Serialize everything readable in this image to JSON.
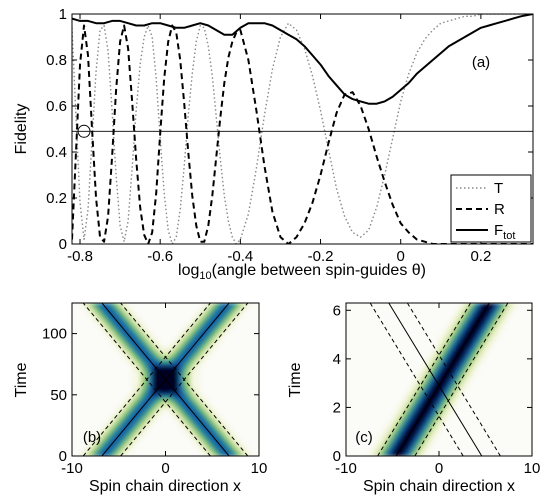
{
  "chart_data": [
    {
      "panel": "(a)",
      "type": "line",
      "xlabel_prefix": "log",
      "xlabel_sub": "10",
      "xlabel_rest": "(angle between spin-guides θ)",
      "ylabel": "Fidelity",
      "xlim": [
        -0.82,
        0.33
      ],
      "ylim": [
        0,
        1
      ],
      "xticks": [
        "-0.8",
        "-0.6",
        "-0.4",
        "-0.2",
        "0",
        "0.2"
      ],
      "xtick_values": [
        -0.8,
        -0.6,
        -0.4,
        -0.2,
        0,
        0.2
      ],
      "yticks": [
        "0",
        "0.2",
        "0.4",
        "0.6",
        "0.8",
        "1"
      ],
      "ytick_values": [
        0,
        0.2,
        0.4,
        0.6,
        0.8,
        1
      ],
      "hline_y": 0.49,
      "marker": {
        "x": -0.79,
        "y": 0.49,
        "shape": "open-circle"
      },
      "legend": {
        "placement": "bottom-right",
        "entries": [
          {
            "label": "T",
            "style": "dotted"
          },
          {
            "label": "R",
            "style": "dashed"
          },
          {
            "label": "F",
            "sub": "tot",
            "style": "solid"
          }
        ]
      },
      "series": [
        {
          "key": "T",
          "style": "dotted",
          "color": "#888888",
          "x": [
            -0.82,
            -0.81,
            -0.8,
            -0.79,
            -0.78,
            -0.77,
            -0.76,
            -0.75,
            -0.74,
            -0.73,
            -0.72,
            -0.71,
            -0.7,
            -0.69,
            -0.68,
            -0.67,
            -0.66,
            -0.65,
            -0.64,
            -0.63,
            -0.62,
            -0.61,
            -0.6,
            -0.59,
            -0.58,
            -0.57,
            -0.56,
            -0.55,
            -0.54,
            -0.53,
            -0.52,
            -0.51,
            -0.5,
            -0.49,
            -0.48,
            -0.47,
            -0.46,
            -0.45,
            -0.44,
            -0.43,
            -0.42,
            -0.41,
            -0.4,
            -0.38,
            -0.36,
            -0.34,
            -0.32,
            -0.3,
            -0.28,
            -0.26,
            -0.24,
            -0.22,
            -0.2,
            -0.18,
            -0.16,
            -0.14,
            -0.12,
            -0.1,
            -0.08,
            -0.06,
            -0.04,
            -0.02,
            0.0,
            0.02,
            0.04,
            0.06,
            0.08,
            0.1,
            0.12,
            0.14,
            0.16,
            0.18,
            0.2,
            0.22,
            0.24,
            0.26,
            0.28,
            0.3,
            0.33
          ],
          "y": [
            0.94,
            0.55,
            0.18,
            0.02,
            0.15,
            0.45,
            0.75,
            0.93,
            0.95,
            0.84,
            0.58,
            0.3,
            0.08,
            0.01,
            0.1,
            0.33,
            0.58,
            0.78,
            0.9,
            0.95,
            0.9,
            0.72,
            0.46,
            0.22,
            0.06,
            0.0,
            0.03,
            0.15,
            0.34,
            0.56,
            0.74,
            0.88,
            0.95,
            0.94,
            0.86,
            0.73,
            0.55,
            0.37,
            0.21,
            0.1,
            0.03,
            0.0,
            0.02,
            0.13,
            0.33,
            0.56,
            0.76,
            0.9,
            0.96,
            0.93,
            0.85,
            0.73,
            0.58,
            0.41,
            0.24,
            0.12,
            0.05,
            0.03,
            0.06,
            0.16,
            0.3,
            0.46,
            0.62,
            0.74,
            0.83,
            0.89,
            0.93,
            0.96,
            0.97,
            0.98,
            0.99,
            0.99,
            1.0,
            1.0,
            1.0,
            1.0,
            1.0,
            1.0,
            1.0
          ]
        },
        {
          "key": "R",
          "style": "dashed",
          "color": "#000000",
          "x": [
            -0.82,
            -0.81,
            -0.8,
            -0.79,
            -0.78,
            -0.77,
            -0.76,
            -0.75,
            -0.74,
            -0.73,
            -0.72,
            -0.71,
            -0.7,
            -0.69,
            -0.68,
            -0.67,
            -0.66,
            -0.65,
            -0.64,
            -0.63,
            -0.62,
            -0.61,
            -0.6,
            -0.59,
            -0.58,
            -0.57,
            -0.56,
            -0.55,
            -0.54,
            -0.53,
            -0.52,
            -0.51,
            -0.5,
            -0.49,
            -0.48,
            -0.47,
            -0.46,
            -0.45,
            -0.44,
            -0.43,
            -0.42,
            -0.41,
            -0.4,
            -0.38,
            -0.36,
            -0.34,
            -0.32,
            -0.3,
            -0.28,
            -0.26,
            -0.24,
            -0.22,
            -0.2,
            -0.18,
            -0.16,
            -0.14,
            -0.12,
            -0.1,
            -0.08,
            -0.06,
            -0.04,
            -0.02,
            0.0,
            0.02,
            0.04,
            0.06,
            0.08,
            0.1,
            0.12,
            0.14,
            0.16,
            0.18,
            0.2,
            0.22,
            0.24,
            0.26,
            0.28,
            0.3,
            0.33
          ],
          "y": [
            0.02,
            0.4,
            0.78,
            0.95,
            0.82,
            0.5,
            0.2,
            0.03,
            0.01,
            0.12,
            0.38,
            0.67,
            0.88,
            0.95,
            0.85,
            0.62,
            0.37,
            0.16,
            0.04,
            0.0,
            0.05,
            0.22,
            0.48,
            0.72,
            0.88,
            0.95,
            0.92,
            0.8,
            0.61,
            0.4,
            0.21,
            0.08,
            0.01,
            0.01,
            0.08,
            0.21,
            0.38,
            0.55,
            0.7,
            0.81,
            0.88,
            0.92,
            0.93,
            0.8,
            0.58,
            0.34,
            0.14,
            0.03,
            0.0,
            0.03,
            0.09,
            0.18,
            0.3,
            0.44,
            0.57,
            0.65,
            0.66,
            0.6,
            0.5,
            0.38,
            0.27,
            0.17,
            0.09,
            0.05,
            0.02,
            0.01,
            0.0,
            0.0,
            0.0,
            0.0,
            0.0,
            0.0,
            0.0,
            0.0,
            0.0,
            0.0,
            0.0,
            0.0,
            0.0
          ]
        },
        {
          "key": "F_tot",
          "style": "solid",
          "color": "#000000",
          "x": [
            -0.82,
            -0.8,
            -0.78,
            -0.76,
            -0.74,
            -0.72,
            -0.7,
            -0.68,
            -0.66,
            -0.64,
            -0.62,
            -0.6,
            -0.58,
            -0.56,
            -0.54,
            -0.52,
            -0.5,
            -0.48,
            -0.46,
            -0.44,
            -0.42,
            -0.4,
            -0.38,
            -0.36,
            -0.34,
            -0.32,
            -0.3,
            -0.28,
            -0.26,
            -0.24,
            -0.22,
            -0.2,
            -0.18,
            -0.16,
            -0.14,
            -0.12,
            -0.1,
            -0.08,
            -0.06,
            -0.04,
            -0.02,
            0.0,
            0.02,
            0.04,
            0.06,
            0.08,
            0.1,
            0.12,
            0.14,
            0.16,
            0.18,
            0.2,
            0.22,
            0.24,
            0.26,
            0.28,
            0.3,
            0.33
          ],
          "y": [
            0.98,
            0.97,
            0.97,
            0.96,
            0.96,
            0.97,
            0.97,
            0.96,
            0.95,
            0.95,
            0.96,
            0.96,
            0.95,
            0.94,
            0.94,
            0.95,
            0.96,
            0.95,
            0.93,
            0.91,
            0.91,
            0.94,
            0.96,
            0.96,
            0.96,
            0.95,
            0.93,
            0.91,
            0.89,
            0.86,
            0.82,
            0.78,
            0.73,
            0.69,
            0.65,
            0.63,
            0.62,
            0.61,
            0.61,
            0.62,
            0.64,
            0.67,
            0.7,
            0.74,
            0.77,
            0.8,
            0.83,
            0.86,
            0.88,
            0.9,
            0.92,
            0.94,
            0.95,
            0.96,
            0.97,
            0.98,
            0.99,
            1.0
          ]
        }
      ]
    },
    {
      "panel": "(b)",
      "type": "heatmap",
      "xlabel": "Spin chain direction x",
      "ylabel": "Time",
      "xlim": [
        -10,
        10
      ],
      "ylim": [
        0,
        125
      ],
      "xticks": [
        "-10",
        "0",
        "10"
      ],
      "xtick_values": [
        -10,
        0,
        10
      ],
      "yticks": [
        "0",
        "50",
        "100"
      ],
      "ytick_values": [
        0,
        50,
        100
      ],
      "guides": [
        {
          "x": [
            -6.8,
            6.8
          ],
          "y": [
            0,
            125
          ],
          "style": "solid"
        },
        {
          "x": [
            -8.8,
            4.8
          ],
          "y": [
            0,
            125
          ],
          "style": "dashed"
        },
        {
          "x": [
            -4.8,
            8.8
          ],
          "y": [
            0,
            125
          ],
          "style": "dashed"
        },
        {
          "x": [
            6.8,
            -6.8
          ],
          "y": [
            0,
            125
          ],
          "style": "solid"
        },
        {
          "x": [
            4.8,
            -8.8
          ],
          "y": [
            0,
            125
          ],
          "style": "dashed"
        },
        {
          "x": [
            8.8,
            -4.8
          ],
          "y": [
            0,
            125
          ],
          "style": "dashed"
        }
      ],
      "packet": {
        "speed_x_per_time": 0.108,
        "start_x": -6.8,
        "t_cross": 62
      }
    },
    {
      "panel": "(c)",
      "type": "heatmap",
      "xlabel": "Spin chain direction x",
      "ylabel": "Time",
      "xlim": [
        -10,
        10
      ],
      "ylim": [
        0,
        6.3
      ],
      "xticks": [
        "-10",
        "0",
        "10"
      ],
      "xtick_values": [
        -10,
        0,
        10
      ],
      "yticks": [
        "0",
        "2",
        "4",
        "6"
      ],
      "ytick_values": [
        0,
        2,
        4,
        6
      ],
      "guides": [
        {
          "x": [
            -4.6,
            5.4
          ],
          "y": [
            0,
            6.3
          ],
          "style": "solid"
        },
        {
          "x": [
            -6.6,
            3.4
          ],
          "y": [
            0,
            6.3
          ],
          "style": "dashed"
        },
        {
          "x": [
            -2.6,
            7.4
          ],
          "y": [
            0,
            6.3
          ],
          "style": "dashed"
        },
        {
          "x": [
            4.6,
            -5.4
          ],
          "y": [
            0,
            6.3
          ],
          "style": "solid"
        },
        {
          "x": [
            6.6,
            -3.4
          ],
          "y": [
            0,
            6.3
          ],
          "style": "dashed"
        },
        {
          "x": [
            2.6,
            -7.4
          ],
          "y": [
            0,
            6.3
          ],
          "style": "dashed"
        }
      ],
      "packet": {
        "start_x": -4.6,
        "end_x": 5.4
      }
    }
  ],
  "colors": {
    "axis": "#000000",
    "t_line": "#888888",
    "heat_low": "#ffffff",
    "heat_mid": "#1e8a8a",
    "heat_high": "#000033"
  }
}
